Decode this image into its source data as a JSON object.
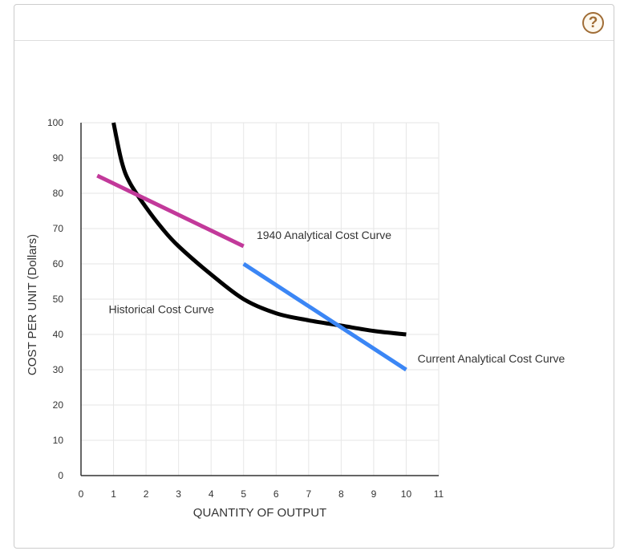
{
  "help_label": "?",
  "chart_data": {
    "type": "line",
    "xlabel": "QUANTITY OF OUTPUT",
    "ylabel": "COST PER UNIT (Dollars)",
    "xlim": [
      0,
      11
    ],
    "ylim": [
      0,
      100
    ],
    "xticks": [
      0,
      1,
      2,
      3,
      4,
      5,
      6,
      7,
      8,
      9,
      10,
      11
    ],
    "yticks": [
      0,
      10,
      20,
      30,
      40,
      50,
      60,
      70,
      80,
      90,
      100
    ],
    "grid": true,
    "series": [
      {
        "name": "Historical Cost Curve",
        "color": "#000000",
        "points": [
          [
            1,
            100
          ],
          [
            1.25,
            89
          ],
          [
            1.5,
            83
          ],
          [
            2,
            76
          ],
          [
            2.5,
            70
          ],
          [
            3,
            65
          ],
          [
            4,
            57
          ],
          [
            5,
            50
          ],
          [
            6,
            46
          ],
          [
            7,
            44
          ],
          [
            8,
            42.5
          ],
          [
            9,
            41
          ],
          [
            10,
            40
          ]
        ]
      },
      {
        "name": "1940 Analytical Cost Curve",
        "color": "#c2399a",
        "points": [
          [
            0.5,
            85
          ],
          [
            5,
            65
          ]
        ]
      },
      {
        "name": "Current Analytical Cost Curve",
        "color": "#3b86f5",
        "points": [
          [
            5,
            60
          ],
          [
            10,
            30
          ]
        ]
      }
    ],
    "annotations": [
      {
        "text": "1940 Analytical Cost Curve",
        "x": 5.4,
        "y": 67
      },
      {
        "text": "Historical Cost Curve",
        "x": 0.85,
        "y": 46
      },
      {
        "text": "Current Analytical Cost Curve",
        "x": 10.35,
        "y": 32
      }
    ]
  }
}
